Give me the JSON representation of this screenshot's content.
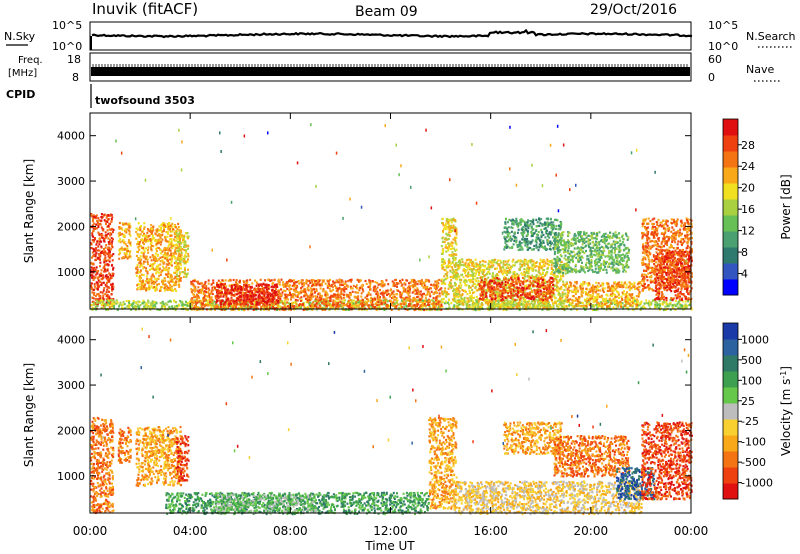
{
  "header": {
    "station": "Inuvik (fitACF)",
    "beam": "Beam 09",
    "date": "29/Oct/2016"
  },
  "noise_panel": {
    "left_label": "N.Sky",
    "right_label": "N.Search",
    "tick_top": "10^5",
    "tick_bottom": "10^0",
    "right_tick_top": "10^5",
    "right_tick_bottom": "10^0"
  },
  "freq_panel": {
    "label_line1": "Freq.",
    "label_line2": "[MHz]",
    "tick_top": "18",
    "tick_bottom": "8",
    "right_label": "Nave",
    "right_tick_top": "60",
    "right_tick_bottom": "0"
  },
  "cpid_panel": {
    "label": "CPID",
    "mode": "twofsound 3503"
  },
  "chart_data": [
    {
      "type": "heatmap",
      "name": "power",
      "ylabel": "Slant Range [km]",
      "xlabel": "",
      "x_ticks": [
        "00:00",
        "04:00",
        "08:00",
        "12:00",
        "16:00",
        "20:00",
        "00:00"
      ],
      "x_range_hours": [
        0,
        24
      ],
      "y_ticks": [
        1000,
        2000,
        3000,
        4000
      ],
      "ylim": [
        180,
        4500
      ],
      "colorbar": {
        "label": "Power [dB]",
        "ticks": [
          "4",
          "8",
          "12",
          "16",
          "20",
          "24",
          "28"
        ],
        "colors": [
          "#0000ff",
          "#3355c0",
          "#2f7a6e",
          "#4aa070",
          "#66c055",
          "#a8d040",
          "#f0e020",
          "#f8a818",
          "#f47414",
          "#ef4010",
          "#e01010"
        ]
      },
      "regions": [
        {
          "t0": 0.0,
          "t1": 0.9,
          "r0": 200,
          "r1": 2300,
          "level": 9
        },
        {
          "t0": 1.1,
          "t1": 1.6,
          "r0": 1300,
          "r1": 2100,
          "level": 7
        },
        {
          "t0": 1.8,
          "t1": 3.6,
          "r0": 600,
          "r1": 2100,
          "level": 7
        },
        {
          "t0": 3.4,
          "t1": 3.9,
          "r0": 900,
          "r1": 1900,
          "level": 6
        },
        {
          "t0": 0.0,
          "t1": 24.0,
          "r0": 180,
          "r1": 400,
          "level": 5
        },
        {
          "t0": 4.0,
          "t1": 14.0,
          "r0": 180,
          "r1": 850,
          "level": 8
        },
        {
          "t0": 5.0,
          "t1": 7.5,
          "r0": 300,
          "r1": 750,
          "level": 10
        },
        {
          "t0": 14.0,
          "t1": 14.6,
          "r0": 400,
          "r1": 2200,
          "level": 6
        },
        {
          "t0": 14.5,
          "t1": 19.0,
          "r0": 200,
          "r1": 1300,
          "level": 6
        },
        {
          "t0": 15.5,
          "t1": 18.5,
          "r0": 400,
          "r1": 900,
          "level": 9
        },
        {
          "t0": 16.5,
          "t1": 18.8,
          "r0": 1500,
          "r1": 2200,
          "level": 3
        },
        {
          "t0": 18.5,
          "t1": 21.5,
          "r0": 1000,
          "r1": 1900,
          "level": 4
        },
        {
          "t0": 19.0,
          "t1": 22.0,
          "r0": 250,
          "r1": 800,
          "level": 7
        },
        {
          "t0": 22.0,
          "t1": 24.0,
          "r0": 600,
          "r1": 2200,
          "level": 8
        },
        {
          "t0": 22.5,
          "t1": 24.0,
          "r0": 400,
          "r1": 1500,
          "level": 9
        }
      ]
    },
    {
      "type": "heatmap",
      "name": "velocity",
      "ylabel": "Slant Range [km]",
      "xlabel": "Time UT",
      "x_ticks": [
        "00:00",
        "04:00",
        "08:00",
        "12:00",
        "16:00",
        "20:00",
        "00:00"
      ],
      "x_range_hours": [
        0,
        24
      ],
      "y_ticks": [
        1000,
        2000,
        3000,
        4000
      ],
      "ylim": [
        180,
        4500
      ],
      "colorbar": {
        "label": "Velocity [m s^-1]",
        "ticks": [
          "1000",
          "500",
          "100",
          "25",
          "-25",
          "-100",
          "-500",
          "-1000"
        ],
        "colors": [
          "#1a3aa8",
          "#2d62a0",
          "#2e7a66",
          "#3ca050",
          "#66c84a",
          "#bdbdbd",
          "#f8d030",
          "#f8a818",
          "#f47414",
          "#ef4010",
          "#e01010"
        ]
      },
      "regions": [
        {
          "t0": 0.0,
          "t1": 0.9,
          "r0": 200,
          "r1": 2300,
          "level": 8
        },
        {
          "t0": 1.1,
          "t1": 1.6,
          "r0": 1300,
          "r1": 2100,
          "level": 8
        },
        {
          "t0": 1.8,
          "t1": 3.6,
          "r0": 800,
          "r1": 2100,
          "level": 7
        },
        {
          "t0": 3.4,
          "t1": 3.9,
          "r0": 900,
          "r1": 1900,
          "level": 9
        },
        {
          "t0": 3.0,
          "t1": 13.5,
          "r0": 180,
          "r1": 650,
          "level": 3
        },
        {
          "t0": 5.0,
          "t1": 9.0,
          "r0": 200,
          "r1": 600,
          "level": 4
        },
        {
          "t0": 13.5,
          "t1": 14.6,
          "r0": 300,
          "r1": 2300,
          "level": 7
        },
        {
          "t0": 14.5,
          "t1": 22.0,
          "r0": 180,
          "r1": 900,
          "level": 6
        },
        {
          "t0": 16.5,
          "t1": 18.8,
          "r0": 1500,
          "r1": 2200,
          "level": 7
        },
        {
          "t0": 18.5,
          "t1": 21.5,
          "r0": 1000,
          "r1": 1900,
          "level": 8
        },
        {
          "t0": 21.0,
          "t1": 22.5,
          "r0": 500,
          "r1": 1200,
          "level": 1
        },
        {
          "t0": 22.0,
          "t1": 24.0,
          "r0": 500,
          "r1": 2200,
          "level": 9
        }
      ]
    }
  ]
}
